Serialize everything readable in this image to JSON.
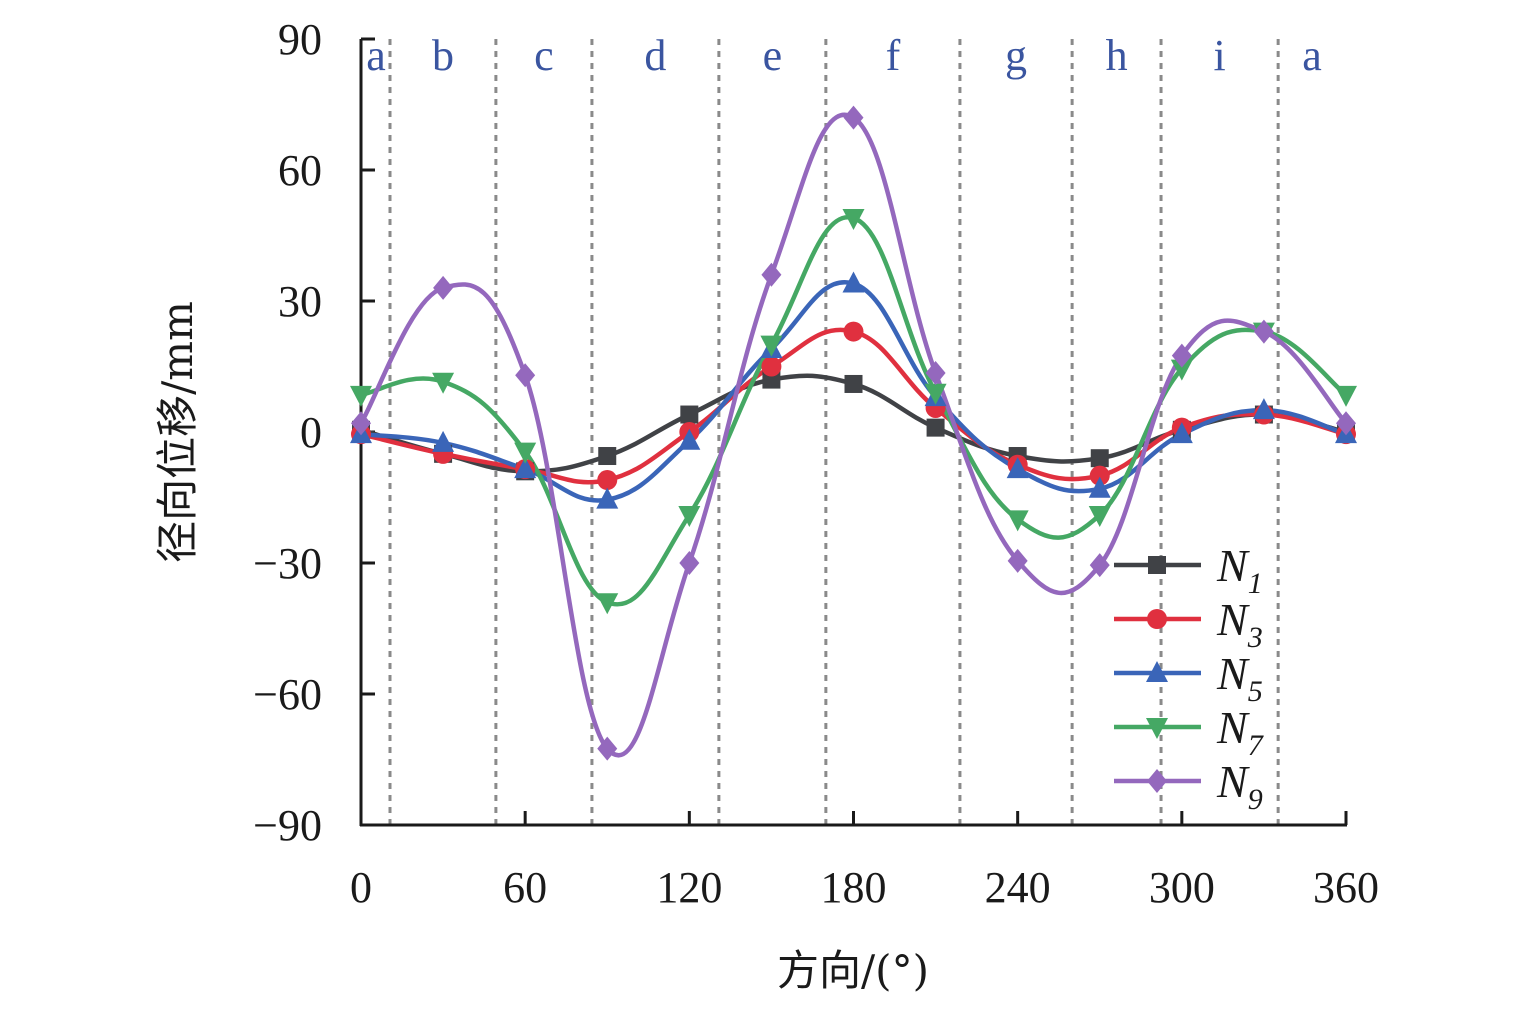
{
  "chart_data": {
    "type": "line",
    "title": "",
    "xlabel": "方向/(°)",
    "ylabel": "径向位移/mm",
    "xlim": [
      0,
      360
    ],
    "ylim": [
      -90,
      90
    ],
    "xticks": [
      0,
      60,
      120,
      180,
      240,
      300,
      360
    ],
    "xtick_labels": [
      "0",
      "60",
      "120",
      "180",
      "240",
      "300",
      "360"
    ],
    "yticks": [
      -90,
      -60,
      -30,
      0,
      30,
      60,
      90
    ],
    "ytick_labels": [
      "−90",
      "−60",
      "−30",
      "0",
      "30",
      "60",
      "90"
    ],
    "grid": false,
    "legend_position": "bottom-right",
    "x": [
      0,
      30,
      60,
      90,
      120,
      150,
      180,
      210,
      240,
      270,
      300,
      330,
      360
    ],
    "series": [
      {
        "name": "N",
        "sub": "1",
        "color": "#404246",
        "marker": "square",
        "values": [
          0.5,
          -5,
          -9,
          -5.5,
          4,
          12,
          11,
          1,
          -5.5,
          -6,
          0.5,
          4,
          0
        ]
      },
      {
        "name": "N",
        "sub": "3",
        "color": "#e0303f",
        "marker": "circle",
        "values": [
          -0.5,
          -5,
          -8.5,
          -11,
          0,
          15,
          23,
          5.5,
          -7.5,
          -10,
          1,
          4,
          -0.5
        ]
      },
      {
        "name": "N",
        "sub": "5",
        "color": "#3a65b8",
        "marker": "triangle-up",
        "values": [
          -0.5,
          -2.5,
          -8.5,
          -15.5,
          -2,
          19,
          34,
          8,
          -8.5,
          -13,
          -0.5,
          5,
          -0.5
        ]
      },
      {
        "name": "N",
        "sub": "7",
        "color": "#45a864",
        "marker": "triangle-down",
        "values": [
          8.5,
          11.5,
          -4.5,
          -39,
          -19,
          20,
          49,
          9,
          -20,
          -19,
          14.5,
          23,
          8.5
        ]
      },
      {
        "name": "N",
        "sub": "9",
        "color": "#9468bd",
        "marker": "diamond",
        "values": [
          2,
          33,
          13,
          -72.5,
          -30,
          36,
          72,
          13.5,
          -29.5,
          -30.5,
          17.5,
          23,
          2
        ]
      }
    ],
    "regions": {
      "boundaries": [
        10.6,
        49.3,
        84.4,
        130.8,
        169.9,
        218.9,
        259.9,
        292.4,
        335.2
      ],
      "labels": [
        "a",
        "b",
        "c",
        "d",
        "e",
        "f",
        "g",
        "h",
        "i",
        "a"
      ],
      "label_color": "#3a55a0",
      "boundary_color": "#8a8a8a"
    }
  }
}
